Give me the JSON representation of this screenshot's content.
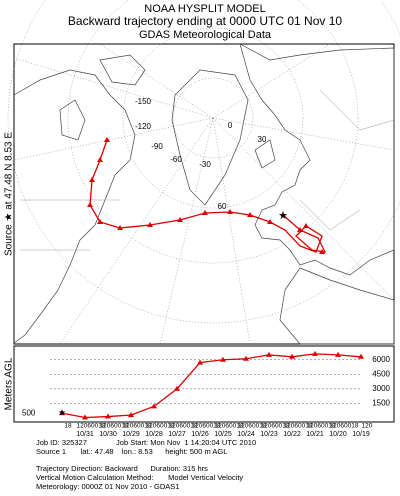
{
  "header": {
    "line1": "NOAA HYSPLIT MODEL",
    "line2": "Backward trajectory ending at 0000 UTC 01 Nov 10",
    "line3": "GDAS Meteorological Data"
  },
  "map": {
    "source_label": "Source ★ at  47.48 N   8.53 E",
    "meridian_labels": [
      "-150",
      "-120",
      "-90",
      "-60",
      "-30",
      "0",
      "30",
      "60"
    ]
  },
  "chart_data": {
    "type": "line",
    "y_label": "Meters AGL",
    "color": "#dd0000",
    "categories": [
      null,
      "10/31",
      "10/30",
      "10/29",
      "10/28",
      "10/27",
      "10/26",
      "10/25",
      "10/24",
      "10/23",
      "10/22",
      "10/21",
      "10/20",
      "10/19"
    ],
    "hour_labels": [
      "18",
      "12060018",
      "12060018",
      "12060018",
      "12060018",
      "12060018",
      "12060018",
      "12060018",
      "12060018",
      "12060018",
      "12060018",
      "12060018",
      "12060018",
      "120"
    ],
    "values": [
      500,
      50,
      150,
      300,
      1200,
      3000,
      5700,
      6000,
      6100,
      6500,
      6300,
      6600,
      6500,
      6300
    ],
    "source_height": 500,
    "ylim": [
      0,
      7000
    ],
    "yticks": [
      1500,
      3000,
      4500,
      6000
    ],
    "grid": true
  },
  "footer": {
    "lines": [
      "Job ID: 325327              Job Start: Mon Nov  1 14:20:04 UTC 2010",
      "Source 1       lat.: 47.48    lon.: 8.53      height: 500 m AGL",
      "Trajectory Direction: Backward      Duration: 315 hrs",
      "Vertical Motion Calculation Method:       Model Vertical Velocity",
      "Meteorology: 0000Z 01 Nov 2010 - GDAS1"
    ]
  }
}
